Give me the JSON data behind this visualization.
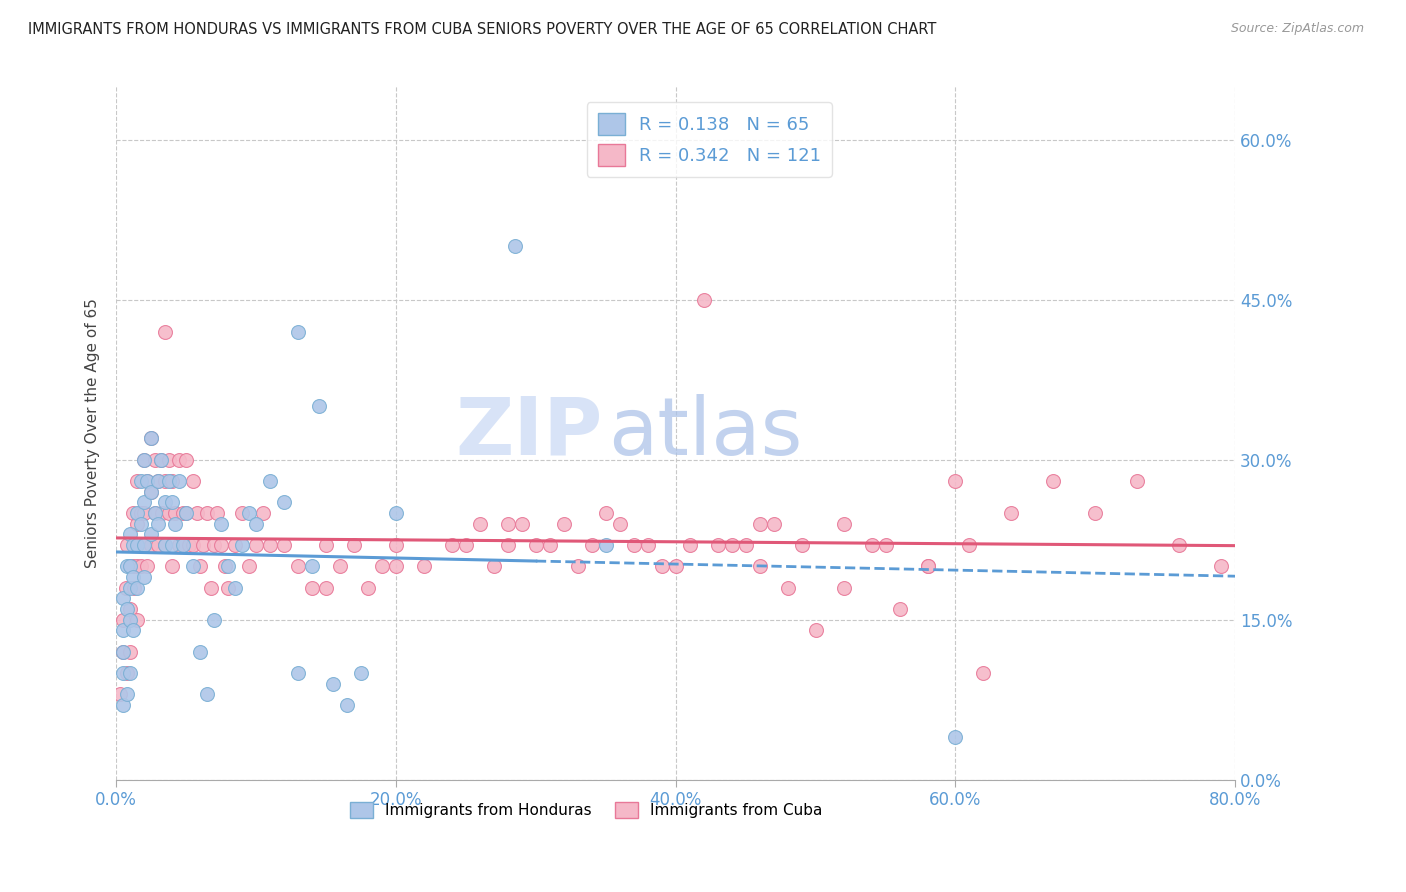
{
  "title": "IMMIGRANTS FROM HONDURAS VS IMMIGRANTS FROM CUBA SENIORS POVERTY OVER THE AGE OF 65 CORRELATION CHART",
  "source": "Source: ZipAtlas.com",
  "ylabel": "Seniors Poverty Over the Age of 65",
  "xlim": [
    0.0,
    0.8
  ],
  "ylim": [
    0.0,
    0.65
  ],
  "xticks": [
    0.0,
    0.2,
    0.4,
    0.6,
    0.8
  ],
  "xtick_labels": [
    "0.0%",
    "20.0%",
    "40.0%",
    "60.0%",
    "80.0%"
  ],
  "yticks": [
    0.0,
    0.15,
    0.3,
    0.45,
    0.6
  ],
  "ytick_labels": [
    "0.0%",
    "15.0%",
    "30.0%",
    "45.0%",
    "60.0%"
  ],
  "grid_color": "#c8c8c8",
  "background_color": "#ffffff",
  "series1_color": "#aec6e8",
  "series2_color": "#f5b8c8",
  "series1_edge": "#7aafd4",
  "series2_edge": "#e87898",
  "line1_color": "#5b9bd5",
  "line2_color": "#e05878",
  "watermark_zip_color": "#c8d8f0",
  "watermark_atlas_color": "#a8c4e8",
  "R1": 0.138,
  "N1": 65,
  "R2": 0.342,
  "N2": 121,
  "legend_label1": "Immigrants from Honduras",
  "legend_label2": "Immigrants from Cuba",
  "honduras_x": [
    0.005,
    0.005,
    0.005,
    0.005,
    0.005,
    0.008,
    0.008,
    0.008,
    0.01,
    0.01,
    0.01,
    0.01,
    0.01,
    0.012,
    0.012,
    0.012,
    0.015,
    0.015,
    0.015,
    0.018,
    0.018,
    0.02,
    0.02,
    0.02,
    0.02,
    0.022,
    0.025,
    0.025,
    0.025,
    0.028,
    0.03,
    0.03,
    0.032,
    0.035,
    0.035,
    0.038,
    0.04,
    0.04,
    0.042,
    0.045,
    0.048,
    0.05,
    0.055,
    0.06,
    0.065,
    0.07,
    0.075,
    0.08,
    0.085,
    0.09,
    0.095,
    0.1,
    0.11,
    0.12,
    0.13,
    0.14,
    0.155,
    0.165,
    0.175,
    0.2,
    0.13,
    0.145,
    0.285,
    0.35,
    0.6
  ],
  "honduras_y": [
    0.17,
    0.14,
    0.12,
    0.1,
    0.07,
    0.2,
    0.16,
    0.08,
    0.23,
    0.2,
    0.18,
    0.15,
    0.1,
    0.22,
    0.19,
    0.14,
    0.25,
    0.22,
    0.18,
    0.28,
    0.24,
    0.3,
    0.26,
    0.22,
    0.19,
    0.28,
    0.32,
    0.27,
    0.23,
    0.25,
    0.28,
    0.24,
    0.3,
    0.26,
    0.22,
    0.28,
    0.26,
    0.22,
    0.24,
    0.28,
    0.22,
    0.25,
    0.2,
    0.12,
    0.08,
    0.15,
    0.24,
    0.2,
    0.18,
    0.22,
    0.25,
    0.24,
    0.28,
    0.26,
    0.1,
    0.2,
    0.09,
    0.07,
    0.1,
    0.25,
    0.42,
    0.35,
    0.5,
    0.22,
    0.04
  ],
  "cuba_x": [
    0.003,
    0.005,
    0.005,
    0.007,
    0.008,
    0.008,
    0.01,
    0.01,
    0.01,
    0.012,
    0.012,
    0.013,
    0.015,
    0.015,
    0.015,
    0.015,
    0.018,
    0.018,
    0.02,
    0.02,
    0.02,
    0.022,
    0.022,
    0.025,
    0.025,
    0.025,
    0.028,
    0.028,
    0.03,
    0.03,
    0.032,
    0.033,
    0.035,
    0.035,
    0.035,
    0.038,
    0.038,
    0.04,
    0.04,
    0.042,
    0.045,
    0.045,
    0.048,
    0.05,
    0.05,
    0.052,
    0.055,
    0.055,
    0.058,
    0.06,
    0.062,
    0.065,
    0.068,
    0.07,
    0.072,
    0.075,
    0.078,
    0.08,
    0.085,
    0.09,
    0.095,
    0.1,
    0.105,
    0.11,
    0.12,
    0.13,
    0.14,
    0.15,
    0.16,
    0.17,
    0.18,
    0.19,
    0.2,
    0.22,
    0.24,
    0.26,
    0.28,
    0.3,
    0.32,
    0.34,
    0.36,
    0.38,
    0.4,
    0.43,
    0.46,
    0.49,
    0.52,
    0.55,
    0.58,
    0.61,
    0.64,
    0.67,
    0.7,
    0.73,
    0.76,
    0.79,
    0.35,
    0.28,
    0.2,
    0.15,
    0.42,
    0.44,
    0.46,
    0.48,
    0.5,
    0.52,
    0.54,
    0.56,
    0.58,
    0.6,
    0.25,
    0.27,
    0.29,
    0.31,
    0.33,
    0.37,
    0.39,
    0.41,
    0.45,
    0.47,
    0.62
  ],
  "cuba_y": [
    0.08,
    0.15,
    0.12,
    0.18,
    0.22,
    0.1,
    0.2,
    0.16,
    0.12,
    0.25,
    0.2,
    0.18,
    0.28,
    0.24,
    0.2,
    0.15,
    0.25,
    0.2,
    0.3,
    0.25,
    0.22,
    0.28,
    0.2,
    0.32,
    0.27,
    0.22,
    0.3,
    0.25,
    0.28,
    0.22,
    0.3,
    0.25,
    0.42,
    0.28,
    0.22,
    0.3,
    0.25,
    0.28,
    0.2,
    0.25,
    0.3,
    0.22,
    0.25,
    0.3,
    0.25,
    0.22,
    0.28,
    0.22,
    0.25,
    0.2,
    0.22,
    0.25,
    0.18,
    0.22,
    0.25,
    0.22,
    0.2,
    0.18,
    0.22,
    0.25,
    0.2,
    0.22,
    0.25,
    0.22,
    0.22,
    0.2,
    0.18,
    0.22,
    0.2,
    0.22,
    0.18,
    0.2,
    0.22,
    0.2,
    0.22,
    0.24,
    0.22,
    0.22,
    0.24,
    0.22,
    0.24,
    0.22,
    0.2,
    0.22,
    0.24,
    0.22,
    0.24,
    0.22,
    0.2,
    0.22,
    0.25,
    0.28,
    0.25,
    0.28,
    0.22,
    0.2,
    0.25,
    0.24,
    0.2,
    0.18,
    0.45,
    0.22,
    0.2,
    0.18,
    0.14,
    0.18,
    0.22,
    0.16,
    0.2,
    0.28,
    0.22,
    0.2,
    0.24,
    0.22,
    0.2,
    0.22,
    0.2,
    0.22,
    0.22,
    0.24,
    0.1
  ]
}
